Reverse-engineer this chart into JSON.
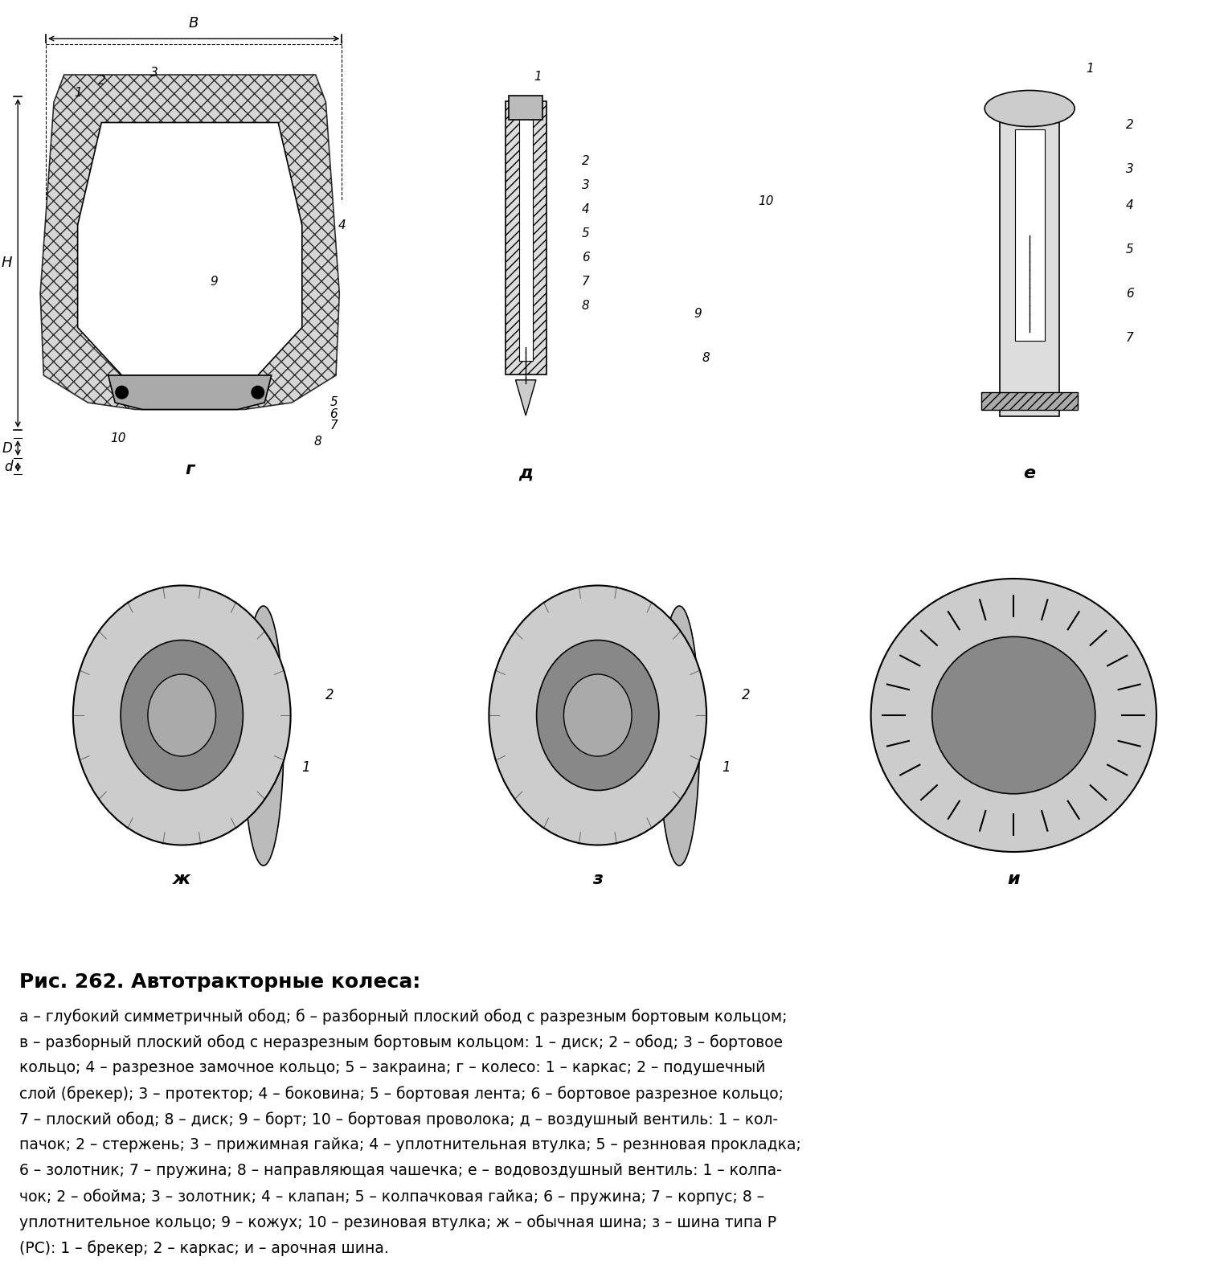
{
  "figure_width": 15.23,
  "figure_height": 15.84,
  "dpi": 100,
  "bg_color": "#ffffff",
  "title": "Рис. 262. Автотракторные колеса:",
  "caption_lines": [
    "а – глубокий симметричный обод; б – разборный плоский обод с разрезным бортовым кольцом;",
    "в – разборный плоский обод с неразрезным бортовым кольцом: 1 – диск; 2 – обод; 3 – бортовое",
    "кольцо; 4 – разрезное замочное кольцо; 5 – закраина; г – колесо: 1 – каркас; 2 – подушечный",
    "слой (брекер); 3 – протектор; 4 – боковина; 5 – бортовая лента; 6 – бортовое разрезное кольцо;",
    "7 – плоский обод; 8 – диск; 9 – борт; 10 – бортовая проволока; д – воздушный вентиль: 1 – кол-",
    "пачок; 2 – стержень; 3 – прижимная гайка; 4 – уплотнительная втулка; 5 – резнновая прокладка;",
    "6 – золотник; 7 – пружина; 8 – направляющая чашечка; е – водовоздушный вентиль: 1 – колпа-",
    "чок; 2 – обойма; 3 – золотник; 4 – клапан; 5 – колпачковая гайка; 6 – пружина; 7 – корпус; 8 –",
    "уплотнительное кольцо; 9 – кожух; 10 – резиновая втулка; ж – обычная шина; з – шина типа Р",
    "(РС): 1 – брекер; 2 – каркас; и – арочная шина."
  ],
  "label_g": "г",
  "label_d": "д",
  "label_e": "е",
  "label_zh": "ж",
  "label_z": "з",
  "label_i": "и"
}
